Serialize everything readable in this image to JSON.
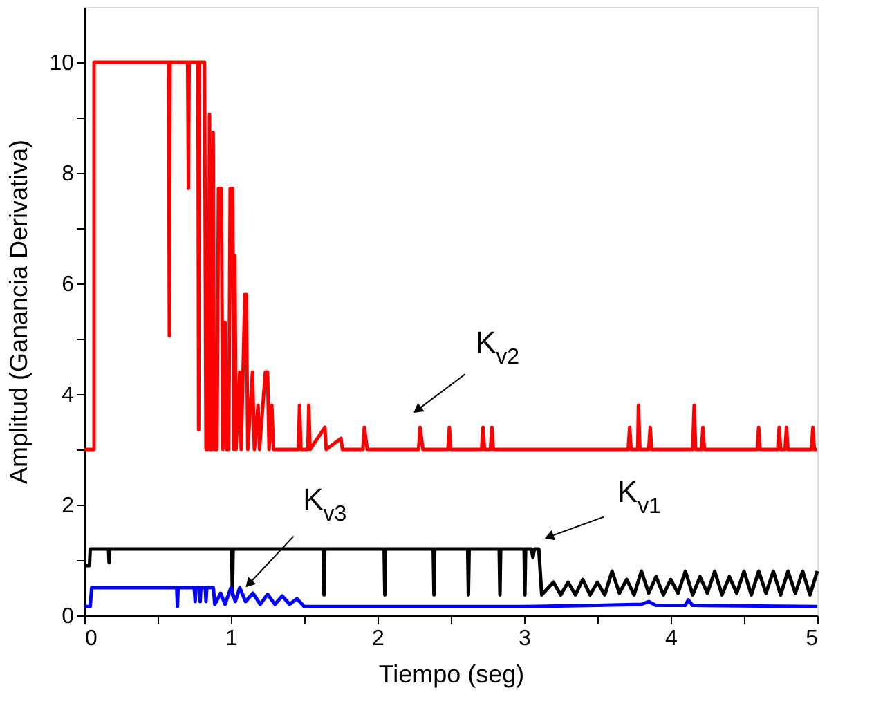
{
  "chart_data": {
    "type": "line",
    "xlabel": "Tiempo (seg)",
    "ylabel": "Amplitud (Ganancia Derivativa)",
    "xlim": [
      0,
      5
    ],
    "xticks": [
      0,
      {
        "value": 0.5,
        "label": null
      },
      1,
      {
        "value": 1.5,
        "label": null
      },
      2,
      {
        "value": 2.5,
        "label": null
      },
      3,
      {
        "value": 3.5,
        "label": null
      },
      4,
      {
        "value": 4.5,
        "label": null
      },
      5
    ],
    "ylim": [
      0,
      11
    ],
    "yticks": [
      0,
      {
        "value": 1,
        "label": null
      },
      2,
      {
        "value": 3,
        "label": null
      },
      4,
      {
        "value": 5,
        "label": null
      },
      6,
      {
        "value": 7,
        "label": null
      },
      8,
      {
        "value": 9,
        "label": null
      },
      10
    ],
    "grid": false,
    "marker": "none",
    "line_style": "solid",
    "annotations": [
      {
        "text": "K$_{v2}$",
        "x": 2.28,
        "y": 3.73
      },
      {
        "text": "K$_{v1}$",
        "x": 3.18,
        "y": 1.43
      },
      {
        "text": "K$_{v3}$",
        "x": 1.13,
        "y": 0.59
      }
    ],
    "series": [
      {
        "color": "#ff0000",
        "x": [
          0,
          0.066,
          0.066,
          0.575,
          0.58,
          0.585,
          0.705,
          0.71,
          0.715,
          0.775,
          0.78,
          0.785,
          0.82,
          0.83,
          0.845,
          0.854,
          0.862,
          0.87,
          0.879,
          0.887,
          0.905,
          0.915,
          0.935,
          0.945,
          0.96,
          0.97,
          0.985,
          0.995,
          1.012,
          1.02,
          1.027,
          1.035,
          1.06,
          1.07,
          1.095,
          1.105,
          1.115,
          1.147,
          1.16,
          1.185,
          1.195,
          1.235,
          1.25,
          1.26,
          1.279,
          1.29,
          1.46,
          1.468,
          1.478,
          1.525,
          1.531,
          1.54,
          1.641,
          1.65,
          1.751,
          1.76,
          1.9,
          1.91,
          1.93,
          2.28,
          2.29,
          2.31,
          2.48,
          2.49,
          2.5,
          2.71,
          2.72,
          2.73,
          2.77,
          2.78,
          2.79,
          3.71,
          3.72,
          3.73,
          3.775,
          3.78,
          3.79,
          3.85,
          3.86,
          3.87,
          4.15,
          4.16,
          4.17,
          4.21,
          4.22,
          4.23,
          4.59,
          4.6,
          4.61,
          4.73,
          4.74,
          4.75,
          4.78,
          4.79,
          4.8,
          4.96,
          4.97,
          4.98,
          5
        ],
        "values": [
          3,
          3,
          10,
          10,
          5.05,
          10,
          10,
          7.72,
          10,
          10,
          3.35,
          10,
          10,
          3,
          3,
          9.06,
          3,
          3,
          8.73,
          3,
          3,
          7.72,
          7.72,
          3,
          5.3,
          3,
          3,
          7.72,
          7.72,
          3,
          6.5,
          3,
          4.4,
          3,
          5.8,
          5.8,
          3,
          4.4,
          3,
          3.8,
          3,
          4.4,
          4.4,
          3,
          3.8,
          3,
          3,
          3.8,
          3,
          3,
          3.8,
          3,
          3.4,
          3,
          3.2,
          3,
          3,
          3.4,
          3,
          3,
          3.4,
          3,
          3,
          3.4,
          3,
          3,
          3.4,
          3,
          3,
          3.4,
          3,
          3,
          3.4,
          3,
          3,
          3.8,
          3,
          3,
          3.4,
          3,
          3,
          3.8,
          3,
          3,
          3.4,
          3,
          3,
          3.4,
          3,
          3,
          3.4,
          3,
          3,
          3.4,
          3,
          3,
          3.4,
          3,
          3
        ]
      },
      {
        "color": "#000000",
        "x": [
          0,
          0.035,
          0.04,
          0.165,
          0.169,
          0.173,
          1.005,
          1.01,
          1.015,
          1.63,
          1.635,
          1.64,
          2.045,
          2.05,
          2.055,
          2.38,
          2.385,
          2.39,
          2.615,
          2.62,
          2.625,
          2.83,
          2.835,
          2.84,
          3.0,
          3.005,
          3.01,
          3.05,
          3.06,
          3.07,
          3.1,
          3.12,
          3.2,
          3.25,
          3.3,
          3.35,
          3.4,
          3.45,
          3.5,
          3.55,
          3.6,
          3.65,
          3.7,
          3.75,
          3.8,
          3.85,
          3.9,
          3.95,
          4.0,
          4.05,
          4.1,
          4.15,
          4.2,
          4.25,
          4.3,
          4.35,
          4.4,
          4.45,
          4.5,
          4.55,
          4.6,
          4.65,
          4.7,
          4.75,
          4.8,
          4.85,
          4.9,
          4.95,
          5.0
        ],
        "values": [
          0.9,
          0.9,
          1.2,
          1.2,
          0.95,
          1.2,
          1.2,
          0.37,
          1.2,
          1.2,
          0.37,
          1.2,
          1.2,
          0.37,
          1.2,
          1.2,
          0.37,
          1.2,
          1.2,
          0.37,
          1.2,
          1.2,
          0.37,
          1.2,
          1.2,
          0.37,
          1.2,
          1.2,
          1.05,
          1.2,
          1.2,
          0.37,
          0.6,
          0.37,
          0.6,
          0.37,
          0.65,
          0.37,
          0.6,
          0.37,
          0.8,
          0.4,
          0.65,
          0.37,
          0.8,
          0.4,
          0.7,
          0.37,
          0.65,
          0.4,
          0.8,
          0.37,
          0.7,
          0.4,
          0.8,
          0.37,
          0.7,
          0.4,
          0.8,
          0.37,
          0.8,
          0.4,
          0.8,
          0.37,
          0.8,
          0.4,
          0.8,
          0.37,
          0.8
        ]
      },
      {
        "color": "#0000ff",
        "x": [
          0,
          0.04,
          0.05,
          0.63,
          0.635,
          0.64,
          0.75,
          0.756,
          0.762,
          0.785,
          0.79,
          0.795,
          0.825,
          0.83,
          0.835,
          0.88,
          0.89,
          0.93,
          0.96,
          1.0,
          1.03,
          1.06,
          1.1,
          1.15,
          1.2,
          1.25,
          1.3,
          1.35,
          1.4,
          1.45,
          1.5,
          3.0,
          3.5,
          3.8,
          3.85,
          3.9,
          4.1,
          4.12,
          4.15,
          5
        ],
        "values": [
          0.16,
          0.16,
          0.5,
          0.5,
          0.16,
          0.5,
          0.5,
          0.25,
          0.5,
          0.5,
          0.25,
          0.5,
          0.5,
          0.25,
          0.5,
          0.5,
          0.2,
          0.4,
          0.2,
          0.5,
          0.25,
          0.5,
          0.25,
          0.4,
          0.2,
          0.38,
          0.2,
          0.35,
          0.2,
          0.3,
          0.16,
          0.16,
          0.18,
          0.2,
          0.25,
          0.18,
          0.18,
          0.28,
          0.18,
          0.16
        ]
      }
    ]
  }
}
